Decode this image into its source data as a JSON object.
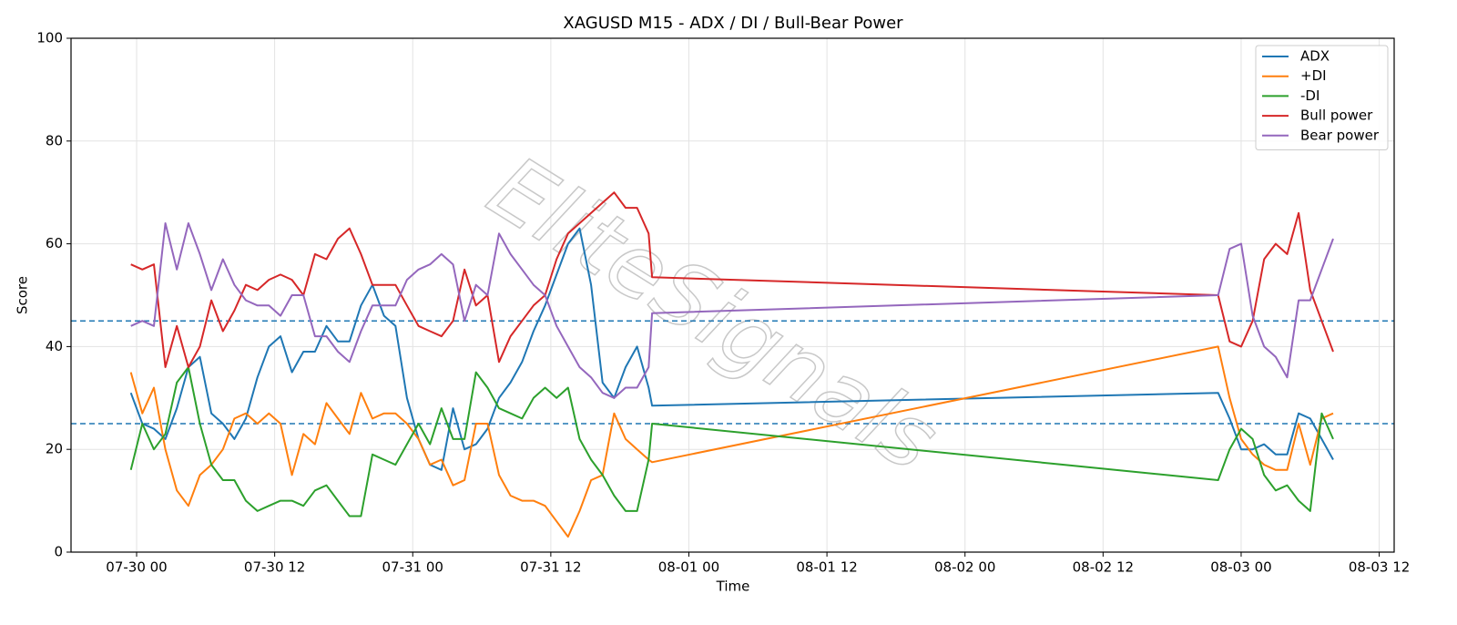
{
  "chart_data": {
    "type": "line",
    "title": "XAGUSD M15 - ADX / DI / Bull-Bear Power",
    "xlabel": "Time",
    "ylabel": "Score",
    "watermark": "EliteSignals",
    "x": [
      -0.5,
      0.5,
      1.5,
      2.5,
      3.5,
      4.5,
      5.5,
      6.5,
      7.5,
      8.5,
      9.5,
      10.5,
      11.5,
      12.5,
      13.5,
      14.5,
      15.5,
      16.5,
      17.5,
      18.5,
      19.5,
      20.5,
      21.5,
      22.5,
      23.5,
      24.5,
      25.5,
      26.5,
      27.5,
      28.5,
      29.5,
      30.5,
      31.5,
      32.5,
      33.5,
      34.5,
      35.5,
      36.5,
      37.5,
      38.5,
      39.5,
      40.5,
      41.5,
      42.5,
      43.5,
      44.5,
      44.8,
      94,
      95,
      96,
      97,
      98,
      99,
      100,
      101,
      102,
      103,
      104
    ],
    "series": [
      {
        "name": "ADX",
        "color": "#1f77b4",
        "values": [
          31,
          25,
          24,
          22,
          28,
          36,
          38,
          27,
          25,
          22,
          26,
          34,
          40,
          42,
          35,
          39,
          39,
          44,
          41,
          41,
          48,
          52,
          46,
          44,
          30,
          22,
          17,
          16,
          28,
          20,
          21,
          24,
          30,
          33,
          37,
          43,
          48,
          54,
          60,
          63,
          52,
          33,
          30,
          36,
          40,
          32,
          28.5,
          31,
          26,
          20,
          20,
          21,
          19,
          19,
          27,
          26,
          22,
          18
        ]
      },
      {
        "name": "+DI",
        "color": "#ff7f0e",
        "values": [
          35,
          27,
          32,
          20,
          12,
          9,
          15,
          17,
          20,
          26,
          27,
          25,
          27,
          25,
          15,
          23,
          21,
          29,
          26,
          23,
          31,
          26,
          27,
          27,
          25,
          22,
          17,
          18,
          13,
          14,
          25,
          25,
          15,
          11,
          10,
          10,
          9,
          6,
          3,
          8,
          14,
          15,
          27,
          22,
          20,
          18,
          17.5,
          40,
          30,
          22,
          19,
          17,
          16,
          16,
          25,
          17,
          26,
          27
        ]
      },
      {
        "name": "-DI",
        "color": "#2ca02c",
        "values": [
          16,
          25,
          20,
          23,
          33,
          36,
          25,
          17,
          14,
          14,
          10,
          8,
          9,
          10,
          10,
          9,
          12,
          13,
          10,
          7,
          7,
          19,
          18,
          17,
          21,
          25,
          21,
          28,
          22,
          22,
          35,
          32,
          28,
          27,
          26,
          30,
          32,
          30,
          32,
          22,
          18,
          15,
          11,
          8,
          8,
          18,
          25,
          14,
          20,
          24,
          22,
          15,
          12,
          13,
          10,
          8,
          27,
          22
        ]
      },
      {
        "name": "Bull power",
        "color": "#d62728",
        "values": [
          56,
          55,
          56,
          36,
          44,
          36,
          40,
          49,
          43,
          47,
          52,
          51,
          53,
          54,
          53,
          50,
          58,
          57,
          61,
          63,
          58,
          52,
          52,
          52,
          48,
          44,
          43,
          42,
          45,
          55,
          48,
          50,
          37,
          42,
          45,
          48,
          50,
          57,
          62,
          64,
          66,
          68,
          70,
          67,
          67,
          62,
          53.5,
          50,
          41,
          40,
          45,
          57,
          60,
          58,
          66,
          51,
          45,
          39
        ]
      },
      {
        "name": "Bear power",
        "color": "#9467bd",
        "values": [
          44,
          45,
          44,
          64,
          55,
          64,
          58,
          51,
          57,
          52,
          49,
          48,
          48,
          46,
          50,
          50,
          42,
          42,
          39,
          37,
          43,
          48,
          48,
          48,
          53,
          55,
          56,
          58,
          56,
          45,
          52,
          50,
          62,
          58,
          55,
          52,
          50,
          44,
          40,
          36,
          34,
          31,
          30,
          32,
          32,
          36,
          46.5,
          50,
          59,
          60,
          46,
          40,
          38,
          34,
          49,
          49,
          55,
          61
        ]
      }
    ],
    "hlines": [
      {
        "value": 25,
        "color": "#1f77b4"
      },
      {
        "value": 45,
        "color": "#1f77b4"
      }
    ],
    "xlim": [
      -5.7,
      109.3
    ],
    "xticks": [
      {
        "value": 0,
        "label": "07-30 00"
      },
      {
        "value": 12,
        "label": "07-30 12"
      },
      {
        "value": 24,
        "label": "07-31 00"
      },
      {
        "value": 36,
        "label": "07-31 12"
      },
      {
        "value": 48,
        "label": "08-01 00"
      },
      {
        "value": 60,
        "label": "08-01 12"
      },
      {
        "value": 72,
        "label": "08-02 00"
      },
      {
        "value": 84,
        "label": "08-02 12"
      },
      {
        "value": 96,
        "label": "08-03 00"
      },
      {
        "value": 108,
        "label": "08-03 12"
      }
    ],
    "ylim": [
      0,
      100
    ],
    "yticks": [
      0,
      20,
      40,
      60,
      80,
      100
    ],
    "grid": true,
    "legend": "upper right"
  }
}
